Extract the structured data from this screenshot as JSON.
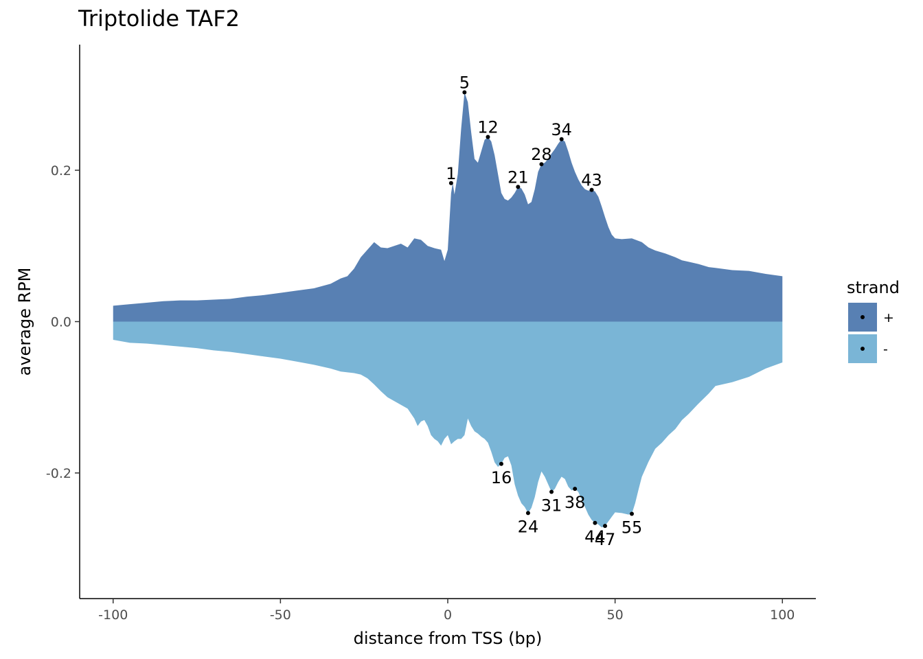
{
  "chart_data": {
    "type": "area",
    "title": "Triptolide TAF2",
    "xlabel": "distance from TSS (bp)",
    "ylabel": "average RPM",
    "xlim": [
      -110,
      110
    ],
    "ylim": [
      -0.366,
      0.366
    ],
    "x_ticks": [
      -100,
      -50,
      0,
      50,
      100
    ],
    "x_tick_labels": [
      "-100",
      "-50",
      "0",
      "50",
      "100"
    ],
    "y_ticks": [
      -0.2,
      0.0,
      0.2
    ],
    "y_tick_labels": [
      "-0.2",
      "0.0",
      "0.2"
    ],
    "grid": false,
    "legend": {
      "title": "strand",
      "position": "right"
    },
    "series": [
      {
        "name": "+",
        "color": "#5880b3",
        "points": [
          [
            -100,
            0.021
          ],
          [
            -95,
            0.023
          ],
          [
            -90,
            0.025
          ],
          [
            -85,
            0.027
          ],
          [
            -80,
            0.028
          ],
          [
            -75,
            0.028
          ],
          [
            -70,
            0.029
          ],
          [
            -65,
            0.03
          ],
          [
            -60,
            0.033
          ],
          [
            -55,
            0.035
          ],
          [
            -50,
            0.038
          ],
          [
            -45,
            0.041
          ],
          [
            -40,
            0.044
          ],
          [
            -35,
            0.05
          ],
          [
            -32,
            0.057
          ],
          [
            -30,
            0.06
          ],
          [
            -28,
            0.07
          ],
          [
            -26,
            0.085
          ],
          [
            -24,
            0.095
          ],
          [
            -22,
            0.105
          ],
          [
            -20,
            0.098
          ],
          [
            -18,
            0.097
          ],
          [
            -16,
            0.1
          ],
          [
            -14,
            0.103
          ],
          [
            -12,
            0.098
          ],
          [
            -10,
            0.11
          ],
          [
            -8,
            0.108
          ],
          [
            -6,
            0.1
          ],
          [
            -4,
            0.097
          ],
          [
            -2,
            0.095
          ],
          [
            -1,
            0.08
          ],
          [
            0,
            0.095
          ],
          [
            1,
            0.17
          ],
          [
            1.5,
            0.183
          ],
          [
            2,
            0.168
          ],
          [
            3,
            0.195
          ],
          [
            4,
            0.255
          ],
          [
            5,
            0.303
          ],
          [
            6,
            0.29
          ],
          [
            7,
            0.25
          ],
          [
            8,
            0.215
          ],
          [
            9,
            0.21
          ],
          [
            10,
            0.225
          ],
          [
            11,
            0.24
          ],
          [
            12,
            0.244
          ],
          [
            13,
            0.238
          ],
          [
            14,
            0.22
          ],
          [
            15,
            0.195
          ],
          [
            16,
            0.17
          ],
          [
            17,
            0.162
          ],
          [
            18,
            0.16
          ],
          [
            19,
            0.164
          ],
          [
            20,
            0.17
          ],
          [
            21,
            0.178
          ],
          [
            22,
            0.176
          ],
          [
            23,
            0.168
          ],
          [
            24,
            0.155
          ],
          [
            25,
            0.158
          ],
          [
            26,
            0.175
          ],
          [
            27,
            0.198
          ],
          [
            28,
            0.208
          ],
          [
            29,
            0.21
          ],
          [
            30,
            0.215
          ],
          [
            31,
            0.222
          ],
          [
            32,
            0.228
          ],
          [
            33,
            0.235
          ],
          [
            34,
            0.241
          ],
          [
            35,
            0.238
          ],
          [
            36,
            0.225
          ],
          [
            37,
            0.21
          ],
          [
            38,
            0.198
          ],
          [
            39,
            0.188
          ],
          [
            40,
            0.18
          ],
          [
            41,
            0.175
          ],
          [
            42,
            0.173
          ],
          [
            43,
            0.174
          ],
          [
            44,
            0.172
          ],
          [
            45,
            0.165
          ],
          [
            46,
            0.152
          ],
          [
            47,
            0.138
          ],
          [
            48,
            0.125
          ],
          [
            49,
            0.115
          ],
          [
            50,
            0.11
          ],
          [
            52,
            0.109
          ],
          [
            55,
            0.11
          ],
          [
            58,
            0.105
          ],
          [
            60,
            0.098
          ],
          [
            62,
            0.094
          ],
          [
            65,
            0.09
          ],
          [
            68,
            0.085
          ],
          [
            70,
            0.081
          ],
          [
            72,
            0.079
          ],
          [
            75,
            0.076
          ],
          [
            78,
            0.072
          ],
          [
            80,
            0.071
          ],
          [
            85,
            0.068
          ],
          [
            90,
            0.067
          ],
          [
            95,
            0.063
          ],
          [
            100,
            0.06
          ]
        ]
      },
      {
        "name": "-",
        "color": "#7ab5d6",
        "points": [
          [
            -100,
            -0.024
          ],
          [
            -95,
            -0.028
          ],
          [
            -90,
            -0.029
          ],
          [
            -85,
            -0.031
          ],
          [
            -80,
            -0.033
          ],
          [
            -75,
            -0.035
          ],
          [
            -70,
            -0.038
          ],
          [
            -65,
            -0.04
          ],
          [
            -60,
            -0.043
          ],
          [
            -55,
            -0.046
          ],
          [
            -50,
            -0.049
          ],
          [
            -45,
            -0.053
          ],
          [
            -40,
            -0.057
          ],
          [
            -35,
            -0.062
          ],
          [
            -32,
            -0.066
          ],
          [
            -28,
            -0.068
          ],
          [
            -26,
            -0.07
          ],
          [
            -24,
            -0.075
          ],
          [
            -22,
            -0.083
          ],
          [
            -20,
            -0.092
          ],
          [
            -18,
            -0.1
          ],
          [
            -16,
            -0.105
          ],
          [
            -14,
            -0.11
          ],
          [
            -12,
            -0.115
          ],
          [
            -10,
            -0.128
          ],
          [
            -9,
            -0.138
          ],
          [
            -8,
            -0.132
          ],
          [
            -7,
            -0.13
          ],
          [
            -6,
            -0.138
          ],
          [
            -5,
            -0.15
          ],
          [
            -4,
            -0.155
          ],
          [
            -3,
            -0.158
          ],
          [
            -2,
            -0.164
          ],
          [
            -1,
            -0.155
          ],
          [
            0,
            -0.15
          ],
          [
            1,
            -0.162
          ],
          [
            2,
            -0.158
          ],
          [
            3,
            -0.155
          ],
          [
            4,
            -0.155
          ],
          [
            5,
            -0.15
          ],
          [
            6,
            -0.128
          ],
          [
            7,
            -0.138
          ],
          [
            8,
            -0.145
          ],
          [
            9,
            -0.148
          ],
          [
            10,
            -0.152
          ],
          [
            11,
            -0.155
          ],
          [
            12,
            -0.16
          ],
          [
            13,
            -0.172
          ],
          [
            14,
            -0.186
          ],
          [
            15,
            -0.192
          ],
          [
            16,
            -0.188
          ],
          [
            17,
            -0.18
          ],
          [
            18,
            -0.178
          ],
          [
            19,
            -0.19
          ],
          [
            20,
            -0.215
          ],
          [
            21,
            -0.23
          ],
          [
            22,
            -0.24
          ],
          [
            23,
            -0.245
          ],
          [
            24,
            -0.253
          ],
          [
            25,
            -0.246
          ],
          [
            26,
            -0.232
          ],
          [
            27,
            -0.212
          ],
          [
            28,
            -0.198
          ],
          [
            29,
            -0.205
          ],
          [
            30,
            -0.215
          ],
          [
            31,
            -0.225
          ],
          [
            32,
            -0.221
          ],
          [
            33,
            -0.212
          ],
          [
            34,
            -0.205
          ],
          [
            35,
            -0.208
          ],
          [
            36,
            -0.218
          ],
          [
            37,
            -0.223
          ],
          [
            38,
            -0.221
          ],
          [
            39,
            -0.225
          ],
          [
            40,
            -0.235
          ],
          [
            41,
            -0.245
          ],
          [
            42,
            -0.255
          ],
          [
            43,
            -0.262
          ],
          [
            44,
            -0.266
          ],
          [
            45,
            -0.268
          ],
          [
            46,
            -0.272
          ],
          [
            47,
            -0.27
          ],
          [
            48,
            -0.264
          ],
          [
            49,
            -0.258
          ],
          [
            50,
            -0.252
          ],
          [
            52,
            -0.253
          ],
          [
            54,
            -0.255
          ],
          [
            55,
            -0.254
          ],
          [
            56,
            -0.24
          ],
          [
            57,
            -0.222
          ],
          [
            58,
            -0.205
          ],
          [
            60,
            -0.185
          ],
          [
            62,
            -0.168
          ],
          [
            64,
            -0.16
          ],
          [
            66,
            -0.15
          ],
          [
            68,
            -0.142
          ],
          [
            70,
            -0.13
          ],
          [
            72,
            -0.122
          ],
          [
            75,
            -0.108
          ],
          [
            78,
            -0.095
          ],
          [
            80,
            -0.085
          ],
          [
            85,
            -0.08
          ],
          [
            90,
            -0.073
          ],
          [
            95,
            -0.062
          ],
          [
            100,
            -0.054
          ]
        ]
      }
    ],
    "annotations": [
      {
        "label": "1",
        "x": 1,
        "y": 0.183,
        "position": "above"
      },
      {
        "label": "5",
        "x": 5,
        "y": 0.303,
        "position": "above"
      },
      {
        "label": "12",
        "x": 12,
        "y": 0.244,
        "position": "above"
      },
      {
        "label": "21",
        "x": 21,
        "y": 0.178,
        "position": "above"
      },
      {
        "label": "28",
        "x": 28,
        "y": 0.208,
        "position": "above"
      },
      {
        "label": "34",
        "x": 34,
        "y": 0.241,
        "position": "above"
      },
      {
        "label": "43",
        "x": 43,
        "y": 0.174,
        "position": "above"
      },
      {
        "label": "16",
        "x": 16,
        "y": -0.188,
        "position": "below"
      },
      {
        "label": "24",
        "x": 24,
        "y": -0.253,
        "position": "below"
      },
      {
        "label": "31",
        "x": 31,
        "y": -0.225,
        "position": "below"
      },
      {
        "label": "38",
        "x": 38,
        "y": -0.221,
        "position": "below"
      },
      {
        "label": "44",
        "x": 44,
        "y": -0.266,
        "position": "below"
      },
      {
        "label": "47",
        "x": 47,
        "y": -0.27,
        "position": "below"
      },
      {
        "label": "55",
        "x": 55,
        "y": -0.254,
        "position": "below"
      }
    ]
  }
}
